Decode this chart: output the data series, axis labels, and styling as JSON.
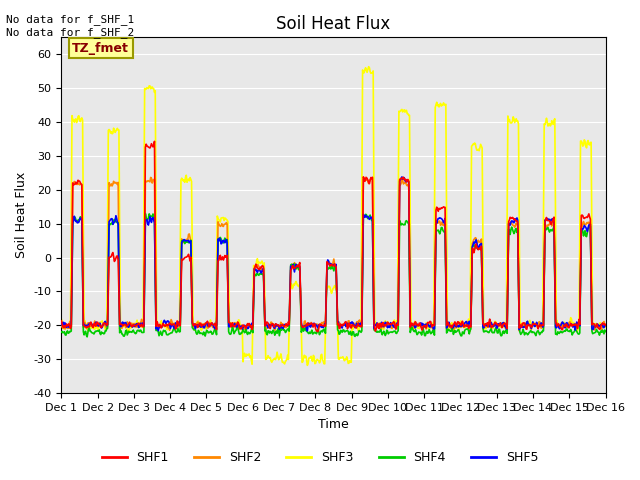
{
  "title": "Soil Heat Flux",
  "ylabel": "Soil Heat Flux",
  "xlabel": "Time",
  "ylim": [
    -40,
    65
  ],
  "xlim": [
    0,
    15
  ],
  "xtick_labels": [
    "Dec 1",
    "Dec 2",
    "Dec 3",
    "Dec 4",
    "Dec 5",
    "Dec 6",
    "Dec 7",
    "Dec 8",
    "Dec 9",
    "Dec 10",
    "Dec 11",
    "Dec 12",
    "Dec 13",
    "Dec 14",
    "Dec 15",
    "Dec 16"
  ],
  "ytick_labels": [
    "-40",
    "-30",
    "-20",
    "-10",
    "0",
    "10",
    "20",
    "30",
    "40",
    "50",
    "60"
  ],
  "yticks": [
    -40,
    -30,
    -20,
    -10,
    0,
    10,
    20,
    30,
    40,
    50,
    60
  ],
  "legend_entries": [
    "SHF1",
    "SHF2",
    "SHF3",
    "SHF4",
    "SHF5"
  ],
  "legend_colors": [
    "#ff0000",
    "#ff8800",
    "#ffff00",
    "#00cc00",
    "#0000ff"
  ],
  "annotation_text": "No data for f_SHF_1\nNo data for f_SHF_2",
  "box_label": "TZ_fmet",
  "box_color": "#ffff99",
  "box_border_color": "#999900",
  "box_text_color": "#880000",
  "background_color": "#e8e8e8",
  "grid_color": "#ffffff",
  "title_fontsize": 12,
  "axis_fontsize": 9,
  "tick_fontsize": 8
}
